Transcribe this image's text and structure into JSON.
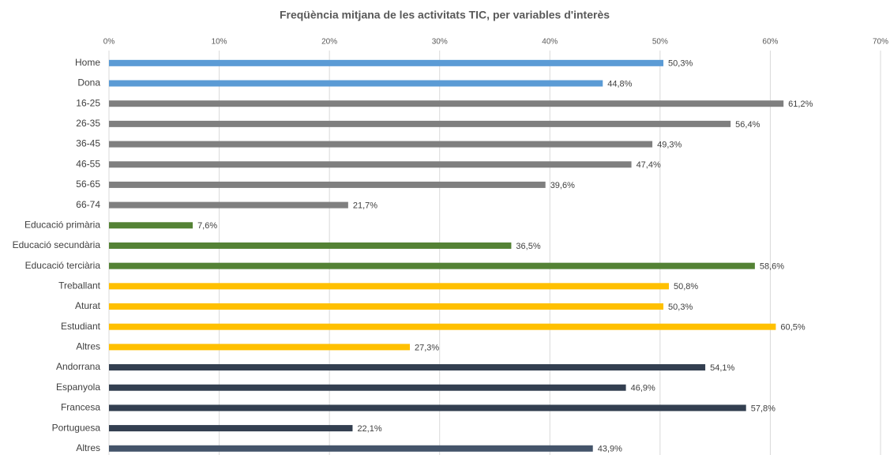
{
  "chart_data": {
    "type": "hbar",
    "title": "Freqüència mitjana de les activitats TIC, per variables d'interès",
    "categories": [
      "Home",
      "Dona",
      "16-25",
      "26-35",
      "36-45",
      "46-55",
      "56-65",
      "66-74",
      "Educació primària",
      "Educació secundària",
      "Educació terciària",
      "Treballant",
      "Aturat",
      "Estudiant",
      "Altres",
      "Andorrana",
      "Espanyola",
      "Francesa",
      "Portuguesa",
      "Altres"
    ],
    "values": [
      50.3,
      44.8,
      61.2,
      56.4,
      49.3,
      47.4,
      39.6,
      21.7,
      7.6,
      36.5,
      58.6,
      50.8,
      50.3,
      60.5,
      27.3,
      54.1,
      46.9,
      57.8,
      22.1,
      43.9
    ],
    "value_labels": [
      "50,3%",
      "44,8%",
      "61,2%",
      "56,4%",
      "49,3%",
      "47,4%",
      "39,6%",
      "21,7%",
      "7,6%",
      "36,5%",
      "58,6%",
      "50,8%",
      "50,3%",
      "60,5%",
      "27,3%",
      "54,1%",
      "46,9%",
      "57,8%",
      "22,1%",
      "43,9%"
    ],
    "colors": [
      "#5b9bd5",
      "#5b9bd5",
      "#7f7f7f",
      "#7f7f7f",
      "#7f7f7f",
      "#7f7f7f",
      "#7f7f7f",
      "#7f7f7f",
      "#548235",
      "#548235",
      "#548235",
      "#ffc000",
      "#ffc000",
      "#ffc000",
      "#ffc000",
      "#333f50",
      "#333f50",
      "#333f50",
      "#333f50",
      "#44546a"
    ],
    "xlim": [
      0,
      70
    ],
    "xticks": [
      {
        "value": 0,
        "label": "0%"
      },
      {
        "value": 10,
        "label": "10%"
      },
      {
        "value": 20,
        "label": "20%"
      },
      {
        "value": 30,
        "label": "30%"
      },
      {
        "value": 40,
        "label": "40%"
      },
      {
        "value": 50,
        "label": "50%"
      },
      {
        "value": 60,
        "label": "60%"
      },
      {
        "value": 70,
        "label": "70%"
      }
    ],
    "grid": true
  }
}
